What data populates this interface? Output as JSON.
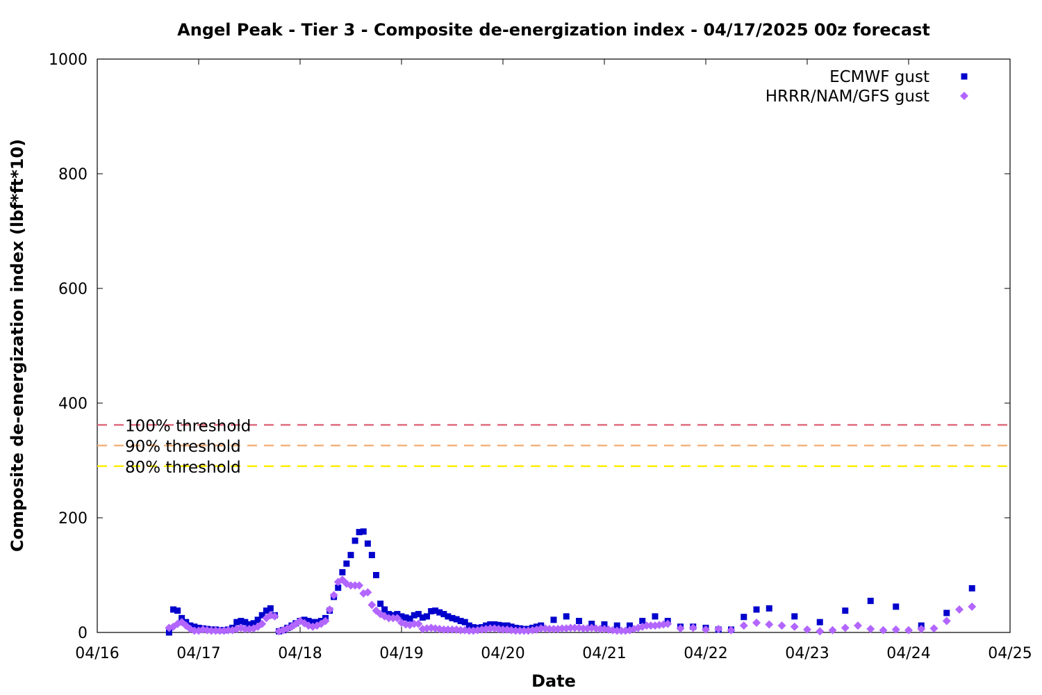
{
  "chart_data": {
    "type": "scatter",
    "title": "Angel Peak - Tier 3 - Composite de-energization index - 04/17/2025 00z forecast",
    "xlabel": "Date",
    "ylabel": "Composite de-energization index (lbf*ft*10)",
    "xlim_days": [
      0,
      9
    ],
    "x_tick_labels": [
      "04/16",
      "04/17",
      "04/18",
      "04/19",
      "04/20",
      "04/21",
      "04/22",
      "04/23",
      "04/24",
      "04/25"
    ],
    "ylim": [
      0,
      1000
    ],
    "y_ticks": [
      0,
      200,
      400,
      600,
      800,
      1000
    ],
    "grid": false,
    "legend_position": "top-right",
    "thresholds": [
      {
        "label": "100% threshold",
        "value": 362,
        "color": "#e06c7f"
      },
      {
        "label": "90% threshold",
        "value": 326,
        "color": "#f4b27c"
      },
      {
        "label": "80% threshold",
        "value": 290,
        "color": "#ffee00"
      }
    ],
    "series": [
      {
        "name": "ECMWF gust",
        "marker": "square",
        "color": "#0000cc",
        "points": [
          [
            0.708,
            0
          ],
          [
            0.75,
            40
          ],
          [
            0.792,
            38
          ],
          [
            0.833,
            25
          ],
          [
            0.875,
            18
          ],
          [
            0.917,
            12
          ],
          [
            0.958,
            10
          ],
          [
            1.0,
            8
          ],
          [
            1.042,
            7
          ],
          [
            1.083,
            6
          ],
          [
            1.125,
            5
          ],
          [
            1.167,
            5
          ],
          [
            1.208,
            4
          ],
          [
            1.25,
            4
          ],
          [
            1.292,
            5
          ],
          [
            1.333,
            8
          ],
          [
            1.375,
            18
          ],
          [
            1.417,
            20
          ],
          [
            1.458,
            18
          ],
          [
            1.5,
            14
          ],
          [
            1.542,
            16
          ],
          [
            1.583,
            22
          ],
          [
            1.625,
            30
          ],
          [
            1.667,
            38
          ],
          [
            1.708,
            42
          ],
          [
            1.75,
            30
          ],
          [
            1.792,
            2
          ],
          [
            1.833,
            4
          ],
          [
            1.875,
            8
          ],
          [
            1.917,
            12
          ],
          [
            1.958,
            16
          ],
          [
            2.0,
            20
          ],
          [
            2.042,
            22
          ],
          [
            2.083,
            20
          ],
          [
            2.125,
            18
          ],
          [
            2.167,
            18
          ],
          [
            2.208,
            20
          ],
          [
            2.25,
            25
          ],
          [
            2.292,
            38
          ],
          [
            2.333,
            62
          ],
          [
            2.375,
            78
          ],
          [
            2.417,
            105
          ],
          [
            2.458,
            120
          ],
          [
            2.5,
            135
          ],
          [
            2.542,
            160
          ],
          [
            2.583,
            175
          ],
          [
            2.625,
            176
          ],
          [
            2.667,
            155
          ],
          [
            2.708,
            135
          ],
          [
            2.75,
            100
          ],
          [
            2.792,
            50
          ],
          [
            2.833,
            40
          ],
          [
            2.875,
            32
          ],
          [
            2.917,
            30
          ],
          [
            2.958,
            32
          ],
          [
            3.0,
            28
          ],
          [
            3.042,
            26
          ],
          [
            3.083,
            24
          ],
          [
            3.125,
            30
          ],
          [
            3.167,
            32
          ],
          [
            3.208,
            26
          ],
          [
            3.25,
            28
          ],
          [
            3.292,
            37
          ],
          [
            3.333,
            38
          ],
          [
            3.375,
            35
          ],
          [
            3.417,
            32
          ],
          [
            3.458,
            28
          ],
          [
            3.5,
            25
          ],
          [
            3.542,
            23
          ],
          [
            3.583,
            20
          ],
          [
            3.625,
            18
          ],
          [
            3.667,
            12
          ],
          [
            3.708,
            9
          ],
          [
            3.75,
            8
          ],
          [
            3.792,
            9
          ],
          [
            3.833,
            12
          ],
          [
            3.875,
            14
          ],
          [
            3.917,
            14
          ],
          [
            3.958,
            13
          ],
          [
            4.0,
            12
          ],
          [
            4.042,
            12
          ],
          [
            4.083,
            10
          ],
          [
            4.125,
            8
          ],
          [
            4.167,
            7
          ],
          [
            4.208,
            6
          ],
          [
            4.25,
            6
          ],
          [
            4.292,
            8
          ],
          [
            4.333,
            10
          ],
          [
            4.375,
            12
          ],
          [
            4.5,
            22
          ],
          [
            4.625,
            28
          ],
          [
            4.75,
            20
          ],
          [
            4.875,
            15
          ],
          [
            5.0,
            14
          ],
          [
            5.125,
            12
          ],
          [
            5.25,
            12
          ],
          [
            5.375,
            20
          ],
          [
            5.5,
            28
          ],
          [
            5.625,
            20
          ],
          [
            5.75,
            10
          ],
          [
            5.875,
            10
          ],
          [
            6.0,
            8
          ],
          [
            6.125,
            5
          ],
          [
            6.25,
            5
          ],
          [
            6.375,
            27
          ],
          [
            6.5,
            40
          ],
          [
            6.625,
            42
          ],
          [
            6.875,
            28
          ],
          [
            7.125,
            18
          ],
          [
            7.375,
            38
          ],
          [
            7.625,
            55
          ],
          [
            7.875,
            45
          ],
          [
            8.125,
            12
          ],
          [
            8.375,
            34
          ],
          [
            8.625,
            77
          ]
        ]
      },
      {
        "name": "HRRR/NAM/GFS gust",
        "marker": "diamond",
        "color": "#b266ff",
        "points": [
          [
            0.708,
            8
          ],
          [
            0.75,
            10
          ],
          [
            0.792,
            15
          ],
          [
            0.833,
            18
          ],
          [
            0.875,
            12
          ],
          [
            0.917,
            6
          ],
          [
            0.958,
            3
          ],
          [
            1.0,
            3
          ],
          [
            1.042,
            5
          ],
          [
            1.083,
            4
          ],
          [
            1.125,
            3
          ],
          [
            1.167,
            3
          ],
          [
            1.208,
            3
          ],
          [
            1.25,
            3
          ],
          [
            1.292,
            4
          ],
          [
            1.333,
            4
          ],
          [
            1.375,
            6
          ],
          [
            1.417,
            8
          ],
          [
            1.458,
            6
          ],
          [
            1.5,
            6
          ],
          [
            1.542,
            7
          ],
          [
            1.583,
            10
          ],
          [
            1.625,
            15
          ],
          [
            1.667,
            25
          ],
          [
            1.708,
            30
          ],
          [
            1.75,
            28
          ],
          [
            1.792,
            2
          ],
          [
            1.833,
            4
          ],
          [
            1.875,
            7
          ],
          [
            1.917,
            10
          ],
          [
            1.958,
            15
          ],
          [
            2.0,
            20
          ],
          [
            2.042,
            16
          ],
          [
            2.083,
            12
          ],
          [
            2.125,
            10
          ],
          [
            2.167,
            12
          ],
          [
            2.208,
            15
          ],
          [
            2.25,
            20
          ],
          [
            2.292,
            40
          ],
          [
            2.333,
            65
          ],
          [
            2.375,
            88
          ],
          [
            2.417,
            92
          ],
          [
            2.458,
            85
          ],
          [
            2.5,
            82
          ],
          [
            2.542,
            82
          ],
          [
            2.583,
            82
          ],
          [
            2.625,
            68
          ],
          [
            2.667,
            70
          ],
          [
            2.708,
            48
          ],
          [
            2.75,
            38
          ],
          [
            2.792,
            32
          ],
          [
            2.833,
            28
          ],
          [
            2.875,
            25
          ],
          [
            2.917,
            25
          ],
          [
            2.958,
            25
          ],
          [
            3.0,
            17
          ],
          [
            3.042,
            14
          ],
          [
            3.083,
            13
          ],
          [
            3.125,
            15
          ],
          [
            3.167,
            15
          ],
          [
            3.208,
            6
          ],
          [
            3.25,
            7
          ],
          [
            3.292,
            8
          ],
          [
            3.333,
            7
          ],
          [
            3.375,
            6
          ],
          [
            3.417,
            5
          ],
          [
            3.458,
            5
          ],
          [
            3.5,
            5
          ],
          [
            3.542,
            5
          ],
          [
            3.583,
            4
          ],
          [
            3.625,
            4
          ],
          [
            3.667,
            3
          ],
          [
            3.708,
            3
          ],
          [
            3.75,
            4
          ],
          [
            3.792,
            5
          ],
          [
            3.833,
            6
          ],
          [
            3.875,
            7
          ],
          [
            3.917,
            7
          ],
          [
            3.958,
            6
          ],
          [
            4.0,
            5
          ],
          [
            4.042,
            5
          ],
          [
            4.083,
            4
          ],
          [
            4.125,
            3
          ],
          [
            4.167,
            3
          ],
          [
            4.208,
            3
          ],
          [
            4.25,
            3
          ],
          [
            4.292,
            4
          ],
          [
            4.333,
            5
          ],
          [
            4.375,
            7
          ],
          [
            4.417,
            7
          ],
          [
            4.458,
            6
          ],
          [
            4.5,
            6
          ],
          [
            4.542,
            6
          ],
          [
            4.583,
            7
          ],
          [
            4.625,
            7
          ],
          [
            4.667,
            8
          ],
          [
            4.708,
            8
          ],
          [
            4.75,
            8
          ],
          [
            4.792,
            7
          ],
          [
            4.833,
            7
          ],
          [
            4.875,
            8
          ],
          [
            4.917,
            7
          ],
          [
            4.958,
            6
          ],
          [
            5.0,
            6
          ],
          [
            5.042,
            5
          ],
          [
            5.083,
            4
          ],
          [
            5.125,
            3
          ],
          [
            5.167,
            3
          ],
          [
            5.208,
            3
          ],
          [
            5.25,
            4
          ],
          [
            5.292,
            6
          ],
          [
            5.333,
            8
          ],
          [
            5.375,
            10
          ],
          [
            5.417,
            12
          ],
          [
            5.458,
            12
          ],
          [
            5.5,
            12
          ],
          [
            5.542,
            13
          ],
          [
            5.583,
            14
          ],
          [
            5.625,
            15
          ],
          [
            5.75,
            7
          ],
          [
            5.875,
            8
          ],
          [
            6.0,
            5
          ],
          [
            6.125,
            6
          ],
          [
            6.25,
            4
          ],
          [
            6.375,
            12
          ],
          [
            6.5,
            17
          ],
          [
            6.625,
            14
          ],
          [
            6.75,
            12
          ],
          [
            6.875,
            10
          ],
          [
            7.0,
            5
          ],
          [
            7.125,
            2
          ],
          [
            7.25,
            4
          ],
          [
            7.375,
            8
          ],
          [
            7.5,
            12
          ],
          [
            7.625,
            6
          ],
          [
            7.75,
            4
          ],
          [
            7.875,
            5
          ],
          [
            8.0,
            4
          ],
          [
            8.125,
            6
          ],
          [
            8.25,
            7
          ],
          [
            8.375,
            20
          ],
          [
            8.5,
            40
          ],
          [
            8.625,
            45
          ]
        ]
      }
    ]
  }
}
